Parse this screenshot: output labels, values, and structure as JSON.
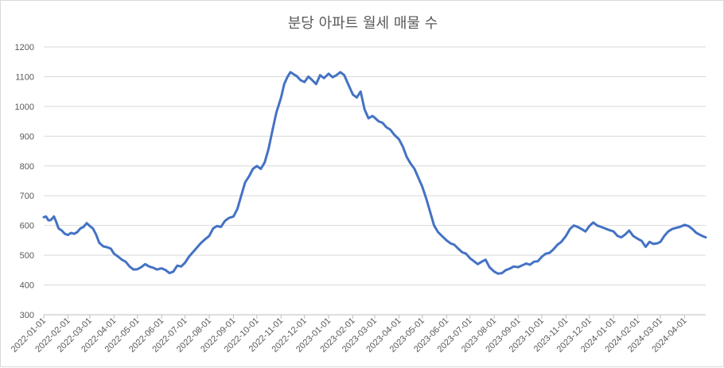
{
  "chart_data": {
    "type": "line",
    "title": "분당 아파트 월세 매물 수",
    "xlabel": "",
    "ylabel": "",
    "ylim": [
      300,
      1200
    ],
    "yticks": [
      300,
      400,
      500,
      600,
      700,
      800,
      900,
      1000,
      1100,
      1200
    ],
    "grid": true,
    "legend": "none",
    "x_range": [
      "2022-01-01",
      "2024-04-28"
    ],
    "categories": [
      "2022-01-01",
      "2022-02-01",
      "2022-03-01",
      "2022-04-01",
      "2022-05-01",
      "2022-06-01",
      "2022-07-01",
      "2022-08-01",
      "2022-09-01",
      "2022-10-01",
      "2022-11-01",
      "2022-12-01",
      "2023-01-01",
      "2023-02-01",
      "2023-03-01",
      "2023-04-01",
      "2023-05-01",
      "2023-06-01",
      "2023-07-01",
      "2023-08-01",
      "2023-09-01",
      "2023-10-01",
      "2023-11-01",
      "2023-12-01",
      "2024-01-01",
      "2024-02-01",
      "2024-03-01",
      "2024-04-01"
    ],
    "series": [
      {
        "color": "#4472c4",
        "points": [
          [
            "2022-01-01",
            628
          ],
          [
            "2022-01-04",
            630
          ],
          [
            "2022-01-07",
            617
          ],
          [
            "2022-01-10",
            618
          ],
          [
            "2022-01-14",
            630
          ],
          [
            "2022-01-17",
            612
          ],
          [
            "2022-01-20",
            590
          ],
          [
            "2022-01-24",
            583
          ],
          [
            "2022-01-28",
            572
          ],
          [
            "2022-02-01",
            568
          ],
          [
            "2022-02-05",
            575
          ],
          [
            "2022-02-09",
            572
          ],
          [
            "2022-02-13",
            578
          ],
          [
            "2022-02-17",
            590
          ],
          [
            "2022-02-21",
            595
          ],
          [
            "2022-02-25",
            608
          ],
          [
            "2022-03-01",
            598
          ],
          [
            "2022-03-05",
            590
          ],
          [
            "2022-03-09",
            570
          ],
          [
            "2022-03-13",
            542
          ],
          [
            "2022-03-18",
            530
          ],
          [
            "2022-03-23",
            527
          ],
          [
            "2022-03-28",
            522
          ],
          [
            "2022-04-01",
            505
          ],
          [
            "2022-04-06",
            496
          ],
          [
            "2022-04-11",
            485
          ],
          [
            "2022-04-16",
            478
          ],
          [
            "2022-04-21",
            462
          ],
          [
            "2022-04-26",
            452
          ],
          [
            "2022-05-01",
            453
          ],
          [
            "2022-05-06",
            460
          ],
          [
            "2022-05-11",
            470
          ],
          [
            "2022-05-16",
            462
          ],
          [
            "2022-05-21",
            458
          ],
          [
            "2022-05-26",
            452
          ],
          [
            "2022-06-01",
            456
          ],
          [
            "2022-06-06",
            450
          ],
          [
            "2022-06-11",
            440
          ],
          [
            "2022-06-16",
            445
          ],
          [
            "2022-06-21",
            465
          ],
          [
            "2022-06-26",
            462
          ],
          [
            "2022-07-01",
            475
          ],
          [
            "2022-07-06",
            495
          ],
          [
            "2022-07-11",
            510
          ],
          [
            "2022-07-16",
            525
          ],
          [
            "2022-07-21",
            540
          ],
          [
            "2022-07-26",
            552
          ],
          [
            "2022-08-01",
            565
          ],
          [
            "2022-08-06",
            590
          ],
          [
            "2022-08-11",
            598
          ],
          [
            "2022-08-16",
            595
          ],
          [
            "2022-08-21",
            615
          ],
          [
            "2022-08-26",
            625
          ],
          [
            "2022-09-01",
            630
          ],
          [
            "2022-09-06",
            655
          ],
          [
            "2022-09-11",
            700
          ],
          [
            "2022-09-16",
            745
          ],
          [
            "2022-09-21",
            765
          ],
          [
            "2022-09-26",
            790
          ],
          [
            "2022-10-01",
            800
          ],
          [
            "2022-10-06",
            790
          ],
          [
            "2022-10-11",
            812
          ],
          [
            "2022-10-16",
            858
          ],
          [
            "2022-10-21",
            920
          ],
          [
            "2022-10-26",
            980
          ],
          [
            "2022-11-01",
            1030
          ],
          [
            "2022-11-05",
            1075
          ],
          [
            "2022-11-09",
            1098
          ],
          [
            "2022-11-13",
            1115
          ],
          [
            "2022-11-17",
            1108
          ],
          [
            "2022-11-21",
            1102
          ],
          [
            "2022-11-26",
            1088
          ],
          [
            "2022-12-01",
            1082
          ],
          [
            "2022-12-06",
            1100
          ],
          [
            "2022-12-11",
            1088
          ],
          [
            "2022-12-16",
            1075
          ],
          [
            "2022-12-21",
            1105
          ],
          [
            "2022-12-26",
            1095
          ],
          [
            "2023-01-01",
            1110
          ],
          [
            "2023-01-06",
            1098
          ],
          [
            "2023-01-11",
            1105
          ],
          [
            "2023-01-16",
            1115
          ],
          [
            "2023-01-21",
            1105
          ],
          [
            "2023-01-26",
            1075
          ],
          [
            "2023-02-01",
            1040
          ],
          [
            "2023-02-06",
            1030
          ],
          [
            "2023-02-11",
            1050
          ],
          [
            "2023-02-16",
            990
          ],
          [
            "2023-02-21",
            960
          ],
          [
            "2023-02-26",
            968
          ],
          [
            "2023-03-01",
            962
          ],
          [
            "2023-03-06",
            950
          ],
          [
            "2023-03-11",
            945
          ],
          [
            "2023-03-16",
            930
          ],
          [
            "2023-03-21",
            922
          ],
          [
            "2023-03-26",
            905
          ],
          [
            "2023-04-01",
            890
          ],
          [
            "2023-04-06",
            865
          ],
          [
            "2023-04-11",
            830
          ],
          [
            "2023-04-16",
            808
          ],
          [
            "2023-04-21",
            790
          ],
          [
            "2023-04-26",
            760
          ],
          [
            "2023-05-01",
            730
          ],
          [
            "2023-05-06",
            690
          ],
          [
            "2023-05-11",
            645
          ],
          [
            "2023-05-16",
            600
          ],
          [
            "2023-05-21",
            578
          ],
          [
            "2023-05-26",
            565
          ],
          [
            "2023-06-01",
            550
          ],
          [
            "2023-06-06",
            540
          ],
          [
            "2023-06-11",
            535
          ],
          [
            "2023-06-16",
            522
          ],
          [
            "2023-06-21",
            510
          ],
          [
            "2023-06-26",
            505
          ],
          [
            "2023-07-01",
            490
          ],
          [
            "2023-07-06",
            480
          ],
          [
            "2023-07-11",
            470
          ],
          [
            "2023-07-16",
            478
          ],
          [
            "2023-07-21",
            485
          ],
          [
            "2023-07-26",
            460
          ],
          [
            "2023-08-01",
            445
          ],
          [
            "2023-08-06",
            438
          ],
          [
            "2023-08-11",
            440
          ],
          [
            "2023-08-16",
            450
          ],
          [
            "2023-08-21",
            455
          ],
          [
            "2023-08-26",
            462
          ],
          [
            "2023-09-01",
            460
          ],
          [
            "2023-09-06",
            466
          ],
          [
            "2023-09-11",
            472
          ],
          [
            "2023-09-16",
            468
          ],
          [
            "2023-09-21",
            478
          ],
          [
            "2023-09-26",
            480
          ],
          [
            "2023-10-01",
            495
          ],
          [
            "2023-10-06",
            505
          ],
          [
            "2023-10-11",
            508
          ],
          [
            "2023-10-16",
            520
          ],
          [
            "2023-10-21",
            535
          ],
          [
            "2023-10-26",
            545
          ],
          [
            "2023-11-01",
            565
          ],
          [
            "2023-11-06",
            588
          ],
          [
            "2023-11-11",
            600
          ],
          [
            "2023-11-16",
            595
          ],
          [
            "2023-11-21",
            588
          ],
          [
            "2023-11-26",
            580
          ],
          [
            "2023-12-01",
            598
          ],
          [
            "2023-12-06",
            610
          ],
          [
            "2023-12-11",
            600
          ],
          [
            "2023-12-16",
            595
          ],
          [
            "2023-12-21",
            590
          ],
          [
            "2023-12-26",
            585
          ],
          [
            "2024-01-01",
            580
          ],
          [
            "2024-01-06",
            565
          ],
          [
            "2024-01-11",
            560
          ],
          [
            "2024-01-16",
            570
          ],
          [
            "2024-01-21",
            583
          ],
          [
            "2024-01-26",
            565
          ],
          [
            "2024-02-01",
            555
          ],
          [
            "2024-02-06",
            548
          ],
          [
            "2024-02-11",
            528
          ],
          [
            "2024-02-16",
            545
          ],
          [
            "2024-02-21",
            538
          ],
          [
            "2024-02-26",
            540
          ],
          [
            "2024-03-01",
            545
          ],
          [
            "2024-03-06",
            565
          ],
          [
            "2024-03-11",
            580
          ],
          [
            "2024-03-16",
            588
          ],
          [
            "2024-03-21",
            592
          ],
          [
            "2024-03-26",
            595
          ],
          [
            "2024-04-01",
            602
          ],
          [
            "2024-04-06",
            598
          ],
          [
            "2024-04-11",
            588
          ],
          [
            "2024-04-16",
            575
          ],
          [
            "2024-04-21",
            568
          ],
          [
            "2024-04-25",
            563
          ],
          [
            "2024-04-28",
            560
          ]
        ]
      }
    ]
  }
}
